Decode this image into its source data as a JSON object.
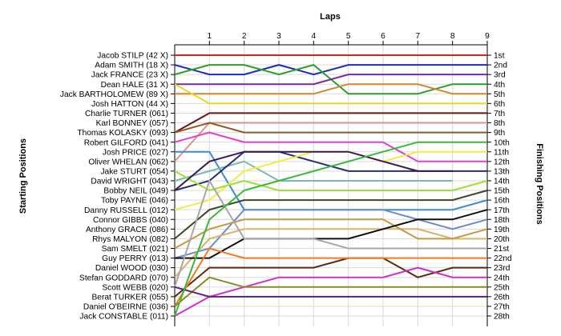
{
  "chart_data": {
    "type": "line",
    "title": "Laps",
    "xlabel": "Laps",
    "ylabel_left": "Starting Positions",
    "ylabel_right": "Finishing Positions",
    "x": [
      0,
      1,
      2,
      3,
      4,
      5,
      6,
      7,
      8,
      9
    ],
    "x_tick_labels": [
      "1",
      "2",
      "3",
      "4",
      "5",
      "6",
      "7",
      "8",
      "9"
    ],
    "xlim": [
      0,
      9
    ],
    "ylim": [
      1,
      28
    ],
    "y_inverted": true,
    "grid": true,
    "starting_labels": [
      "Jacob STILP (42 X)",
      "Adam SMITH (18 X)",
      "Jack FRANCE (23 X)",
      "Dean HALE (31 X)",
      "Jack BARTHOLOMEW (89 X)",
      "Josh HATTON (44 X)",
      "Charlie TURNER (061)",
      "Karl BONNEY (057)",
      "Thomas KOLASKY (093)",
      "Robert GILFORD (041)",
      "Josh PRICE (027)",
      "Oliver WHELAN (062)",
      "Jake STURT (054)",
      "David WRIGHT (043)",
      "Bobby NEIL (049)",
      "Toby PAYNE (046)",
      "Danny RUSSELL (012)",
      "Connor GIBBS (040)",
      "Anthony GRACE (086)",
      "Rhys MALYON (082)",
      "Sam SMELT (021)",
      "Guy PERRY (013)",
      "Daniel WOOD (030)",
      "Stefan GODDARD (070)",
      "Scott WEBB (020)",
      "Berat TURKER (055)",
      "Daniel O'BEIRNE (036)",
      "Jack CONSTABLE (011)"
    ],
    "finishing_labels": [
      "1st",
      "2nd",
      "3rd",
      "4th",
      "5th",
      "6th",
      "7th",
      "8th",
      "9th",
      "10th",
      "11th",
      "12th",
      "13th",
      "14th",
      "15th",
      "16th",
      "17th",
      "18th",
      "19th",
      "20th",
      "21st",
      "22nd",
      "23rd",
      "24th",
      "25th",
      "26th",
      "27th",
      "28th"
    ],
    "series": [
      {
        "color": "#e0201c",
        "values": [
          1,
          1,
          1,
          1,
          1,
          1,
          1,
          1,
          1,
          1
        ]
      },
      {
        "color": "#1a2fb0",
        "values": [
          2,
          3,
          3,
          2,
          3,
          2,
          2,
          2,
          2,
          2
        ]
      },
      {
        "color": "#2c9e2c",
        "values": [
          3,
          2,
          2,
          3,
          2,
          5,
          5,
          5,
          4,
          4
        ]
      },
      {
        "color": "#7a2aa0",
        "values": [
          4,
          4,
          4,
          4,
          4,
          3,
          3,
          3,
          3,
          3
        ]
      },
      {
        "color": "#d6822e",
        "values": [
          5,
          5,
          5,
          5,
          5,
          4,
          4,
          4,
          5,
          5
        ]
      },
      {
        "color": "#e8d820",
        "values": [
          4,
          6,
          6,
          6,
          6,
          6,
          6,
          6,
          6,
          6
        ]
      },
      {
        "color": "#6b1414",
        "values": [
          9,
          7,
          7,
          7,
          7,
          7,
          7,
          7,
          7,
          7
        ]
      },
      {
        "color": "#d79a84",
        "values": [
          12,
          8,
          8,
          8,
          8,
          8,
          8,
          8,
          8,
          8
        ]
      },
      {
        "color": "#8c5a2a",
        "values": [
          9,
          8,
          9,
          9,
          9,
          9,
          9,
          9,
          9,
          9
        ]
      },
      {
        "color": "#e040d0",
        "values": [
          10,
          9,
          10,
          10,
          10,
          10,
          10,
          12,
          12,
          12
        ]
      },
      {
        "color": "#3a8ad8",
        "values": [
          11,
          11,
          17,
          17,
          17,
          17,
          17,
          17,
          17,
          16
        ]
      },
      {
        "color": "#7ab8b0",
        "values": [
          14,
          13,
          12,
          14,
          14,
          14,
          14,
          14,
          14,
          null
        ]
      },
      {
        "color": "#243070",
        "values": [
          15,
          14,
          11,
          11,
          12,
          13,
          13,
          13,
          13,
          13
        ]
      },
      {
        "color": "#f2ec40",
        "values": [
          17,
          16,
          13,
          12,
          11,
          11,
          12,
          11,
          11,
          11
        ]
      },
      {
        "color": "#9ee030",
        "values": [
          13,
          15,
          14,
          15,
          15,
          15,
          15,
          15,
          15,
          14
        ]
      },
      {
        "color": "#3a4a20",
        "values": [
          20,
          17,
          16,
          16,
          16,
          16,
          16,
          16,
          16,
          15
        ]
      },
      {
        "color": "#3a1a50",
        "values": [
          15,
          12,
          11,
          11,
          11,
          11,
          12,
          13,
          13,
          null
        ]
      },
      {
        "color": "#6a8ad0",
        "values": [
          22,
          21,
          17,
          17,
          17,
          17,
          17,
          18,
          19,
          18
        ]
      },
      {
        "color": "#d8b468",
        "values": [
          24,
          20,
          19,
          19,
          19,
          19,
          19,
          19,
          20,
          20
        ]
      },
      {
        "color": "#c89840",
        "values": [
          21,
          19,
          18,
          18,
          18,
          18,
          18,
          20,
          20,
          19
        ]
      },
      {
        "color": "#101010",
        "values": [
          22,
          22,
          20,
          20,
          20,
          20,
          19,
          18,
          18,
          17
        ]
      },
      {
        "color": "#a8a8a8",
        "values": [
          25,
          14,
          20,
          20,
          20,
          21,
          21,
          21,
          21,
          21
        ]
      },
      {
        "color": "#5a2a10",
        "values": [
          26,
          23,
          23,
          23,
          23,
          22,
          22,
          24,
          23,
          23
        ]
      },
      {
        "color": "#f47a20",
        "values": [
          27,
          21,
          22,
          22,
          22,
          22,
          22,
          22,
          22,
          22
        ]
      },
      {
        "color": "#d030c8",
        "values": [
          28,
          26,
          25,
          24,
          24,
          24,
          24,
          23,
          24,
          24
        ]
      },
      {
        "color": "#8a8a2a",
        "values": [
          27,
          24,
          25,
          25,
          25,
          25,
          25,
          25,
          25,
          25
        ]
      },
      {
        "color": "#5a2080",
        "values": [
          25,
          26,
          26,
          26,
          26,
          26,
          26,
          26,
          26,
          26
        ]
      },
      {
        "color": "#3ab83a",
        "values": [
          28,
          18,
          15,
          14,
          13,
          12,
          11,
          10,
          10,
          10
        ]
      }
    ]
  }
}
